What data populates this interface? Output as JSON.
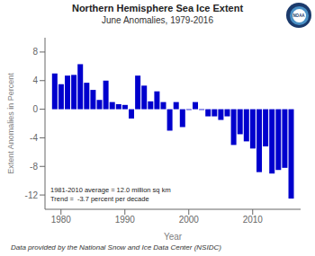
{
  "chart_data": {
    "type": "bar",
    "title": "Northern Hemisphere Sea Ice Extent",
    "subtitle": "June Anomalies, 1979-2016",
    "x_label": "Year",
    "y_label": "Extent Anomalies in Percent",
    "x": [
      1979,
      1980,
      1981,
      1982,
      1983,
      1984,
      1985,
      1986,
      1987,
      1988,
      1989,
      1990,
      1991,
      1992,
      1993,
      1994,
      1995,
      1996,
      1997,
      1998,
      1999,
      2000,
      2001,
      2002,
      2003,
      2004,
      2005,
      2006,
      2007,
      2008,
      2009,
      2010,
      2011,
      2012,
      2013,
      2014,
      2015,
      2016
    ],
    "values": [
      5.0,
      3.5,
      4.7,
      4.8,
      6.3,
      3.7,
      2.7,
      1.3,
      4.0,
      1.0,
      0.7,
      0.6,
      -1.3,
      4.7,
      3.3,
      1.1,
      2.5,
      1.0,
      -3.0,
      1.0,
      -2.5,
      -0.1,
      1.0,
      -0.1,
      -1.0,
      -1.0,
      -1.5,
      -1.0,
      -5.0,
      -3.5,
      -4.5,
      -5.5,
      -8.8,
      -5.2,
      -9.0,
      -8.5,
      -8.2,
      -12.5
    ],
    "color": "#0000CD",
    "xlim": [
      1977.5,
      2017.5
    ],
    "xticks": [
      1980,
      1990,
      2000,
      2010
    ],
    "ylim": [
      -14,
      10
    ],
    "yticks": [
      -12,
      -8,
      -4,
      0,
      4,
      8
    ],
    "grid": false,
    "annotations": [
      "1981-2010 average = 12.0 million sq km",
      "Trend =  -3.7 percent per decade",
      "NOAA"
    ],
    "footnote": "Data provided by the National Snow and Ice Data Center (NSIDC)"
  }
}
